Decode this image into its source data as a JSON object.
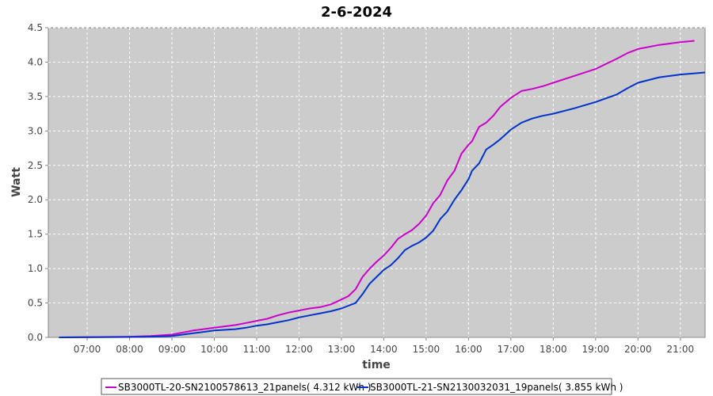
{
  "chart_data": {
    "type": "line",
    "title": "2-6-2024",
    "xlabel": "time",
    "ylabel": "Watt",
    "x_ticks": [
      "07:00",
      "08:00",
      "09:00",
      "10:00",
      "11:00",
      "12:00",
      "13:00",
      "14:00",
      "15:00",
      "16:00",
      "17:00",
      "18:00",
      "19:00",
      "20:00",
      "21:00"
    ],
    "y_ticks": [
      "0.0",
      "0.5",
      "1.0",
      "1.5",
      "2.0",
      "2.5",
      "3.0",
      "3.5",
      "4.0",
      "4.5"
    ],
    "xlim": [
      "06:05",
      "21:35"
    ],
    "ylim": [
      0,
      4.5
    ],
    "grid": true,
    "legend_position": "bottom",
    "series": [
      {
        "name": "SB3000TL-20-SN2100578613_21panels( 4.312 kWh )",
        "color": "#cc00cc",
        "points": [
          [
            "06:20",
            0
          ],
          [
            "07:00",
            0.003
          ],
          [
            "08:00",
            0.01
          ],
          [
            "08:30",
            0.02
          ],
          [
            "09:00",
            0.04
          ],
          [
            "09:15",
            0.07
          ],
          [
            "09:30",
            0.1
          ],
          [
            "10:00",
            0.14
          ],
          [
            "10:30",
            0.18
          ],
          [
            "10:45",
            0.21
          ],
          [
            "11:00",
            0.24
          ],
          [
            "11:15",
            0.27
          ],
          [
            "11:30",
            0.32
          ],
          [
            "11:45",
            0.36
          ],
          [
            "12:00",
            0.39
          ],
          [
            "12:15",
            0.42
          ],
          [
            "12:30",
            0.44
          ],
          [
            "12:45",
            0.48
          ],
          [
            "13:00",
            0.55
          ],
          [
            "13:10",
            0.6
          ],
          [
            "13:20",
            0.7
          ],
          [
            "13:30",
            0.88
          ],
          [
            "13:40",
            1.0
          ],
          [
            "13:50",
            1.1
          ],
          [
            "14:00",
            1.19
          ],
          [
            "14:10",
            1.3
          ],
          [
            "14:20",
            1.43
          ],
          [
            "14:30",
            1.5
          ],
          [
            "14:40",
            1.56
          ],
          [
            "14:50",
            1.65
          ],
          [
            "15:00",
            1.77
          ],
          [
            "15:10",
            1.95
          ],
          [
            "15:20",
            2.07
          ],
          [
            "15:30",
            2.28
          ],
          [
            "15:40",
            2.42
          ],
          [
            "15:50",
            2.67
          ],
          [
            "16:00",
            2.8
          ],
          [
            "16:05",
            2.85
          ],
          [
            "16:15",
            3.06
          ],
          [
            "16:25",
            3.12
          ],
          [
            "16:35",
            3.22
          ],
          [
            "16:45",
            3.35
          ],
          [
            "17:00",
            3.48
          ],
          [
            "17:15",
            3.58
          ],
          [
            "17:30",
            3.61
          ],
          [
            "17:45",
            3.65
          ],
          [
            "18:00",
            3.7
          ],
          [
            "18:30",
            3.8
          ],
          [
            "19:00",
            3.9
          ],
          [
            "19:30",
            4.05
          ],
          [
            "19:45",
            4.13
          ],
          [
            "20:00",
            4.19
          ],
          [
            "20:30",
            4.25
          ],
          [
            "21:00",
            4.29
          ],
          [
            "21:20",
            4.31
          ]
        ]
      },
      {
        "name": "SB3000TL-21-SN2130032031_19panels( 3.855 kWh )",
        "color": "#0033cc",
        "points": [
          [
            "06:20",
            0
          ],
          [
            "07:00",
            0.002
          ],
          [
            "08:00",
            0.006
          ],
          [
            "08:30",
            0.01
          ],
          [
            "09:00",
            0.02
          ],
          [
            "09:15",
            0.04
          ],
          [
            "09:30",
            0.06
          ],
          [
            "10:00",
            0.1
          ],
          [
            "10:30",
            0.12
          ],
          [
            "10:45",
            0.14
          ],
          [
            "11:00",
            0.17
          ],
          [
            "11:15",
            0.19
          ],
          [
            "11:30",
            0.22
          ],
          [
            "11:45",
            0.25
          ],
          [
            "12:00",
            0.29
          ],
          [
            "12:15",
            0.32
          ],
          [
            "12:30",
            0.35
          ],
          [
            "12:45",
            0.38
          ],
          [
            "13:00",
            0.42
          ],
          [
            "13:10",
            0.46
          ],
          [
            "13:20",
            0.5
          ],
          [
            "13:30",
            0.63
          ],
          [
            "13:40",
            0.78
          ],
          [
            "13:50",
            0.88
          ],
          [
            "14:00",
            0.98
          ],
          [
            "14:10",
            1.05
          ],
          [
            "14:20",
            1.15
          ],
          [
            "14:30",
            1.27
          ],
          [
            "14:40",
            1.33
          ],
          [
            "14:50",
            1.38
          ],
          [
            "15:00",
            1.45
          ],
          [
            "15:10",
            1.55
          ],
          [
            "15:20",
            1.72
          ],
          [
            "15:30",
            1.83
          ],
          [
            "15:40",
            2.0
          ],
          [
            "15:50",
            2.14
          ],
          [
            "16:00",
            2.3
          ],
          [
            "16:05",
            2.42
          ],
          [
            "16:15",
            2.53
          ],
          [
            "16:25",
            2.73
          ],
          [
            "16:35",
            2.8
          ],
          [
            "16:45",
            2.88
          ],
          [
            "17:00",
            3.02
          ],
          [
            "17:15",
            3.12
          ],
          [
            "17:30",
            3.18
          ],
          [
            "17:45",
            3.22
          ],
          [
            "18:00",
            3.25
          ],
          [
            "18:30",
            3.33
          ],
          [
            "19:00",
            3.42
          ],
          [
            "19:30",
            3.53
          ],
          [
            "19:45",
            3.62
          ],
          [
            "20:00",
            3.7
          ],
          [
            "20:30",
            3.78
          ],
          [
            "21:00",
            3.82
          ],
          [
            "21:35",
            3.85
          ]
        ]
      }
    ]
  }
}
